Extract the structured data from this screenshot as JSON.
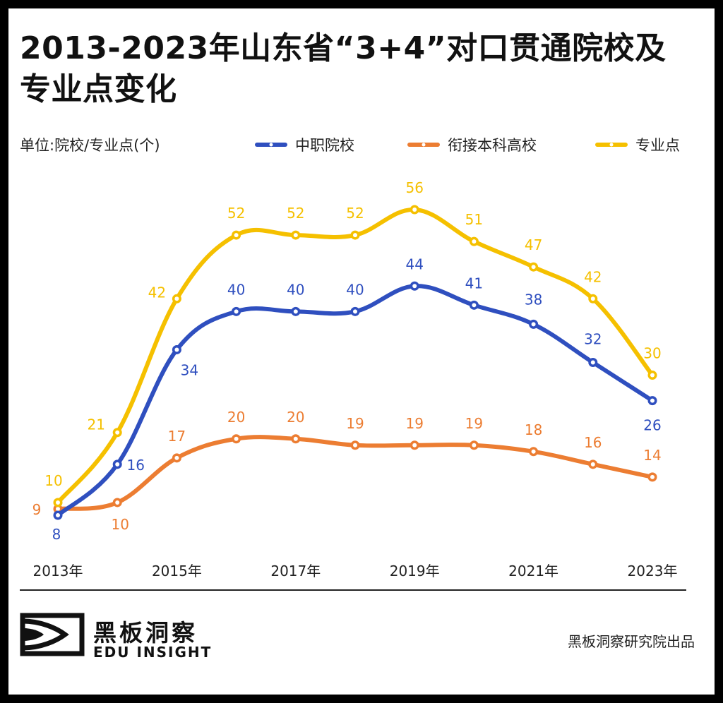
{
  "title": "2013-2023年山东省“3+4”对口贯通院校及专业点变化",
  "unit_label": "单位:院校/专业点(个)",
  "legend": [
    {
      "label": "中职院校",
      "color": "#2f4fbf"
    },
    {
      "label": "衔接本科高校",
      "color": "#ec7d32"
    },
    {
      "label": "专业点",
      "color": "#f5c000"
    }
  ],
  "brand": {
    "cn": "黑板洞察",
    "en": "EDU INSIGHT",
    "logo_icon": "eye-in-square-icon"
  },
  "credit": "黑板洞察研究院出品",
  "chart_data": {
    "type": "line",
    "x": [
      2013,
      2014,
      2015,
      2016,
      2017,
      2018,
      2019,
      2020,
      2021,
      2022,
      2023
    ],
    "x_tick_labels": [
      "2013年",
      "2015年",
      "2017年",
      "2019年",
      "2021年",
      "2023年"
    ],
    "x_tick_values": [
      2013,
      2015,
      2017,
      2019,
      2021,
      2023
    ],
    "ylim": [
      0,
      65
    ],
    "grid": false,
    "legend_position": "top",
    "series": [
      {
        "name": "中职院校",
        "color": "#2f4fbf",
        "values": [
          8,
          16,
          34,
          40,
          40,
          40,
          44,
          41,
          38,
          32,
          26
        ]
      },
      {
        "name": "衔接本科高校",
        "color": "#ec7d32",
        "values": [
          9,
          10,
          17,
          20,
          20,
          19,
          19,
          19,
          18,
          16,
          14
        ]
      },
      {
        "name": "专业点",
        "color": "#f5c000",
        "values": [
          10,
          21,
          42,
          52,
          52,
          52,
          56,
          51,
          47,
          42,
          30
        ]
      }
    ]
  }
}
